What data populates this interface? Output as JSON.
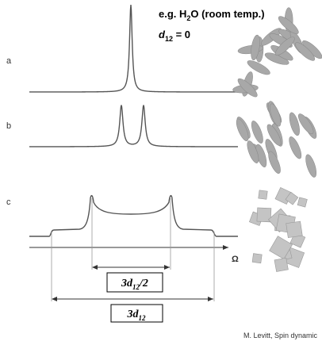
{
  "annotation": {
    "parts": [
      "e.g. H",
      "2",
      "O (room temp.)"
    ]
  },
  "condition": {
    "symbol": "d",
    "subscript": "12",
    "rest": " = 0"
  },
  "panels": [
    {
      "label": "a"
    },
    {
      "label": "b"
    },
    {
      "label": "c"
    }
  ],
  "axis_label": "Ω",
  "widths": [
    {
      "coefficient": "3",
      "symbol": "d",
      "subscript": "12",
      "suffix": "/2"
    },
    {
      "coefficient": "3",
      "symbol": "d",
      "subscript": "12"
    }
  ],
  "credit": "M. Levitt, Spin dynamic"
}
